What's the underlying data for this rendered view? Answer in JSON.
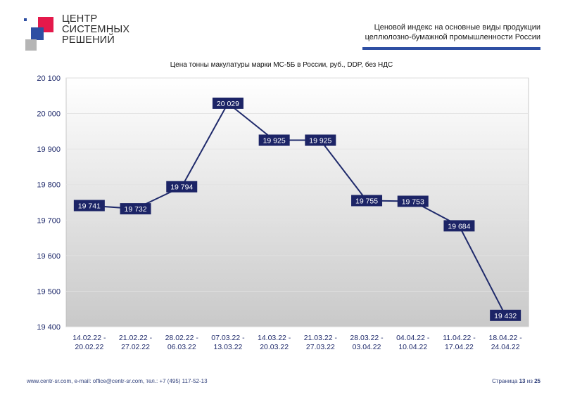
{
  "logo": {
    "line1": "ЦЕНТР",
    "line2": "СИСТЕМНЫХ",
    "line3": "РЕШЕНИЙ",
    "colors": {
      "red": "#e4194b",
      "blue": "#2e4fa3",
      "gray": "#9a9a9a"
    }
  },
  "header": {
    "line1": "Ценовой индекс на основные виды продукции",
    "line2": "целлюлозно-бумажной промышленности России",
    "accent": "#2e4fa3"
  },
  "chart_data": {
    "type": "line",
    "title": "Цена тонны макулатуры марки МС-5Б в России, руб., DDP, без НДС",
    "categories": [
      [
        "14.02.22 -",
        "20.02.22"
      ],
      [
        "21.02.22 -",
        "27.02.22"
      ],
      [
        "28.02.22 -",
        "06.03.22"
      ],
      [
        "07.03.22 -",
        "13.03.22"
      ],
      [
        "14.03.22 -",
        "20.03.22"
      ],
      [
        "21.03.22 -",
        "27.03.22"
      ],
      [
        "28.03.22 -",
        "03.04.22"
      ],
      [
        "04.04.22 -",
        "10.04.22"
      ],
      [
        "11.04.22 -",
        "17.04.22"
      ],
      [
        "18.04.22 -",
        "24.04.22"
      ]
    ],
    "values": [
      19741,
      19732,
      19794,
      20029,
      19925,
      19925,
      19755,
      19753,
      19684,
      19432
    ],
    "value_labels": [
      "19 741",
      "19 732",
      "19 794",
      "20 029",
      "19 925",
      "19 925",
      "19 755",
      "19 753",
      "19 684",
      "19 432"
    ],
    "ylim": [
      19400,
      20100
    ],
    "yticks": [
      19400,
      19500,
      19600,
      19700,
      19800,
      19900,
      20000,
      20100
    ],
    "ytick_labels": [
      "19 400",
      "19 500",
      "19 600",
      "19 700",
      "19 800",
      "19 900",
      "20 000",
      "20 100"
    ],
    "grid": true,
    "line_color": "#1f2a6b",
    "label_bg": "#1c2466"
  },
  "footer": {
    "contacts": "www.centr-sr.com, e-mail: office@centr-sr.com, тел.: +7 (495) 117-52-13",
    "page_word": "Страница",
    "page_num": "13",
    "of_word": "из",
    "page_total": "25"
  }
}
